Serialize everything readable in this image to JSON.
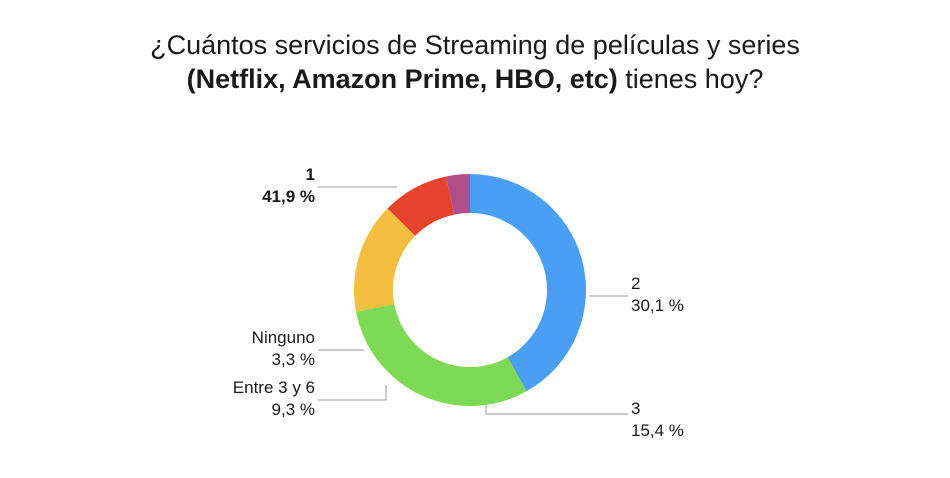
{
  "chart_data": {
    "type": "pie",
    "title_line1": "¿Cuántos servicios de Streaming de películas y series",
    "title_line2_bold": "(Netflix, Amazon Prime, HBO, etc)",
    "title_line2_rest": " tienes hoy?",
    "donut": true,
    "slices": [
      {
        "label": "1",
        "value": 41.9,
        "value_text": "41,9 %",
        "color": "#4a9ff5",
        "bold": true
      },
      {
        "label": "2",
        "value": 30.1,
        "value_text": "30,1 %",
        "color": "#7ed957",
        "bold": false
      },
      {
        "label": "3",
        "value": 15.4,
        "value_text": "15,4 %",
        "color": "#f2bf40",
        "bold": false
      },
      {
        "label": "Entre 3 y 6",
        "value": 9.3,
        "value_text": "9,3 %",
        "color": "#e8432d",
        "bold": false
      },
      {
        "label": "Ninguno",
        "value": 3.3,
        "value_text": "3,3 %",
        "color": "#b0508a",
        "bold": false
      }
    ]
  }
}
